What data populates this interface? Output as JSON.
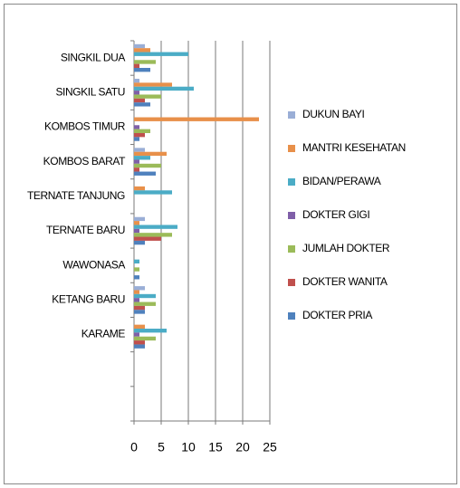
{
  "chart_data": {
    "type": "hbar",
    "categories": [
      "SINGKIL DUA",
      "SINGKIL SATU",
      "KOMBOS TIMUR",
      "KOMBOS BARAT",
      "TERNATE TANJUNG",
      "TERNATE BARU",
      "WAWONASA",
      "KETANG BARU",
      "KARAME",
      null,
      null
    ],
    "series": [
      {
        "name": "DUKUN BAYI",
        "color": "#9aaed6",
        "values": [
          2,
          1,
          0,
          2,
          0,
          2,
          0,
          2,
          0,
          null,
          null
        ]
      },
      {
        "name": "MANTRI KESEHATAN",
        "color": "#e8904a",
        "values": [
          3,
          7,
          23,
          6,
          2,
          1,
          0,
          1,
          2,
          null,
          null
        ]
      },
      {
        "name": "BIDAN/PERAWA",
        "color": "#4bacc6",
        "values": [
          10,
          11,
          0,
          3,
          7,
          8,
          1,
          4,
          6,
          null,
          null
        ]
      },
      {
        "name": "DOKTER GIGI",
        "color": "#7f5fa8",
        "values": [
          0,
          1,
          1,
          1,
          0,
          1,
          0,
          1,
          1,
          null,
          null
        ]
      },
      {
        "name": "JUMLAH DOKTER",
        "color": "#9bbb59",
        "values": [
          4,
          5,
          3,
          5,
          0,
          7,
          1,
          4,
          4,
          null,
          null
        ]
      },
      {
        "name": "DOKTER WANITA",
        "color": "#c0504d",
        "values": [
          1,
          2,
          2,
          1,
          0,
          5,
          0,
          2,
          2,
          null,
          null
        ]
      },
      {
        "name": "DOKTER PRIA",
        "color": "#4f81bd",
        "values": [
          3,
          3,
          1,
          4,
          0,
          2,
          1,
          2,
          2,
          null,
          null
        ]
      }
    ],
    "xlim": [
      0,
      25
    ],
    "xticks": [
      0,
      5,
      10,
      15,
      20,
      25
    ],
    "grid": true,
    "legend": "right"
  }
}
